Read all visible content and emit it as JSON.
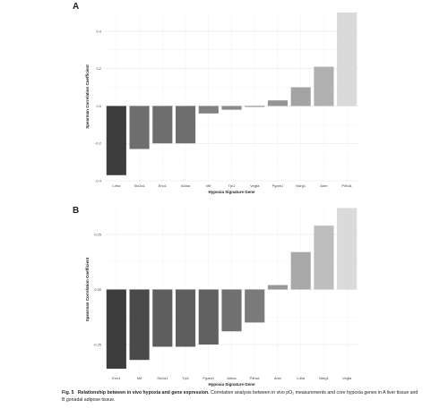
{
  "chart_data": [
    {
      "panel": "A",
      "type": "bar",
      "xlabel": "Hypoxia Signature Gene",
      "ylabel": "Spearman Correlation Coefficient",
      "ylim": [
        -0.4,
        0.5
      ],
      "yticks": [
        -0.4,
        -0.2,
        0.0,
        0.2,
        0.4
      ],
      "ytick_labels": [
        "-0.4",
        "-0.2",
        "0.0",
        "0.2",
        "0.4"
      ],
      "grid": true,
      "categories": [
        "Ldha",
        "Slc2a1",
        "Eno1",
        "Aldoa",
        "Mif",
        "Tpi1",
        "Vegfa",
        "Pgam1",
        "Ndrg1",
        "Adm",
        "P4ha1"
      ],
      "values": [
        -0.37,
        -0.23,
        -0.2,
        -0.2,
        -0.04,
        -0.02,
        -0.005,
        0.03,
        0.1,
        0.21,
        0.5
      ],
      "colors": [
        "#3d3d3d",
        "#6e6e6e",
        "#6e6e6e",
        "#6e6e6e",
        "#808080",
        "#8a8a8a",
        "#8f8f8f",
        "#959595",
        "#a3a3a3",
        "#b0b0b0",
        "#d9d9d9"
      ]
    },
    {
      "panel": "B",
      "type": "bar",
      "xlabel": "Hypoxia Signature Gene",
      "ylabel": "Spearman Correlation Coefficient",
      "ylim": [
        -0.38,
        0.38
      ],
      "yticks": [
        -0.25,
        0.0,
        0.25
      ],
      "ytick_labels": [
        "-0.25",
        "0.00",
        "0.25"
      ],
      "grid": true,
      "categories": [
        "Eno1",
        "Mif",
        "Slc2a1",
        "Tpi1",
        "Pgam1",
        "Aldoa",
        "P4ha1",
        "Adm",
        "Ldha",
        "Ndrg1",
        "Vegfa"
      ],
      "values": [
        -0.36,
        -0.32,
        -0.26,
        -0.26,
        -0.25,
        -0.19,
        -0.15,
        0.02,
        0.17,
        0.29,
        0.37
      ],
      "colors": [
        "#3d3d3d",
        "#4a4a4a",
        "#5e5e5e",
        "#5e5e5e",
        "#616161",
        "#707070",
        "#7a7a7a",
        "#979797",
        "#a8a8a8",
        "#bdbdbd",
        "#dadada"
      ]
    }
  ],
  "caption": {
    "label": "Fig. 5",
    "title": "Relationship between in vivo hypoxia and gene expression.",
    "text": "Correlation analysis between in vivo pO₂ measurements and core hypoxia genes in A liver tissue and B gonadal adipose tissue."
  }
}
